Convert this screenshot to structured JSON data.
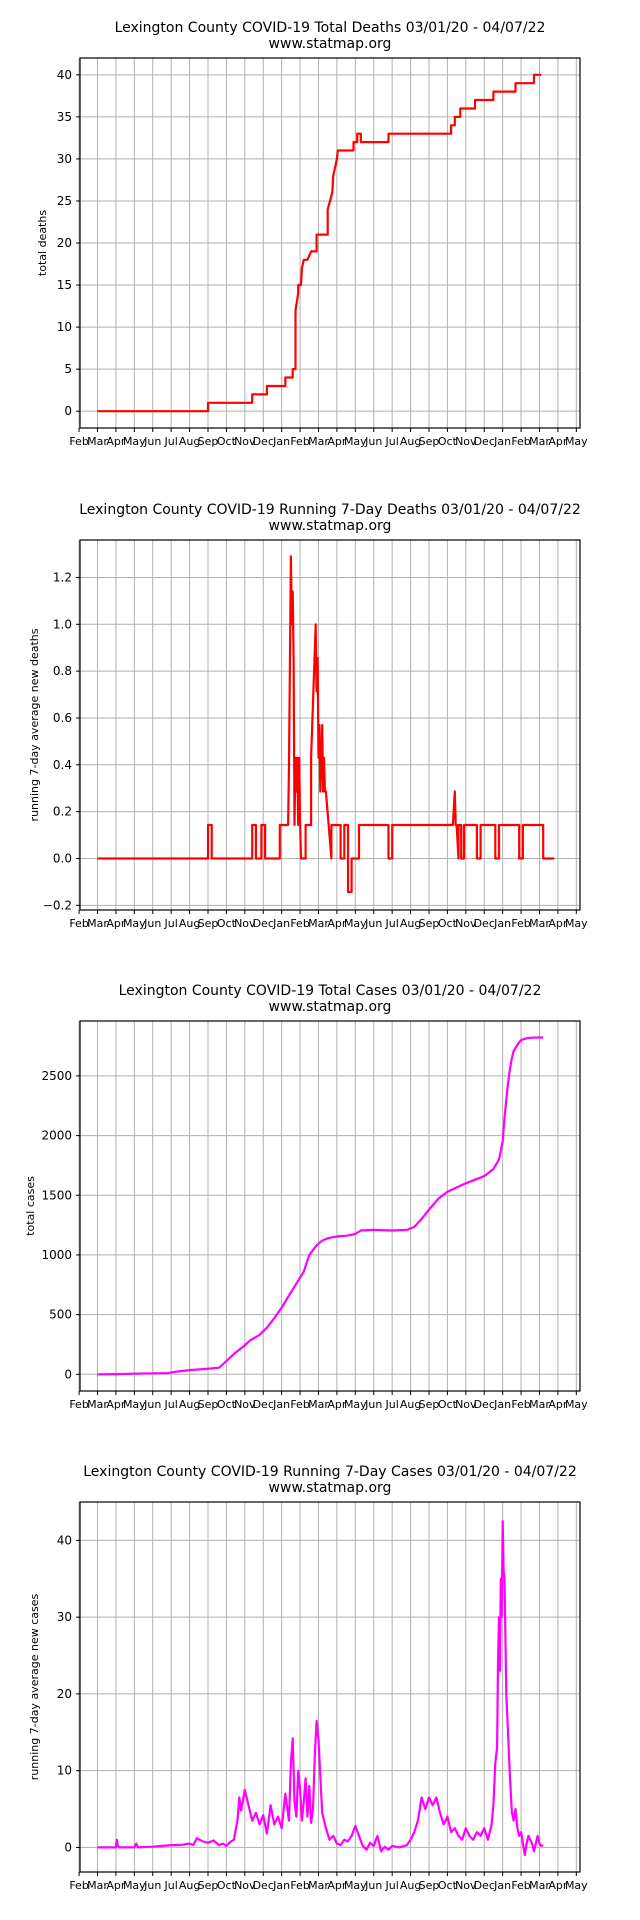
{
  "chart_data": [
    {
      "type": "line",
      "title": "Lexington County COVID-19 Total Deaths 03/01/20 - 04/07/22",
      "subtitle": "www.statmap.org",
      "xlabel": "",
      "ylabel": "total deaths",
      "ylim": [
        -2,
        42
      ],
      "yticks": [
        0,
        5,
        10,
        15,
        20,
        25,
        30,
        35,
        40
      ],
      "xtick_labels": [
        "Feb",
        "Mar",
        "Apr",
        "May",
        "Jun",
        "Jul",
        "Aug",
        "Sep",
        "Oct",
        "Nov",
        "Dec",
        "Jan",
        "Feb",
        "Mar",
        "Apr",
        "May",
        "Jun",
        "Jul",
        "Aug",
        "Sep",
        "Oct",
        "Nov",
        "Dec",
        "Jan",
        "Feb",
        "Mar",
        "Apr",
        "May"
      ],
      "grid": true,
      "color": "#ff0000",
      "series": [
        {
          "x": [
            0,
            6,
            6,
            8.4,
            8.4,
            9.2,
            9.2,
            10.2,
            10.2,
            10.6,
            10.6,
            10.75,
            10.75,
            10.9,
            10.9,
            11.05,
            11.1,
            11.2,
            11.3,
            11.4,
            11.6,
            11.9,
            11.9,
            12.5,
            12.5,
            12.75,
            12.8,
            12.9,
            13.0,
            13.05,
            13.1,
            13.2,
            13.2,
            13.4,
            13.9,
            13.9,
            14.1,
            14.1,
            14.2,
            14.3,
            14.3,
            15.8,
            15.8,
            19.2,
            19.2,
            19.4,
            19.4,
            19.7,
            19.7,
            20.5,
            20.5,
            21.5,
            21.5,
            22.7,
            22.7,
            23.7,
            23.7,
            24.1
          ],
          "y": [
            0,
            0,
            1,
            1,
            2,
            2,
            3,
            3,
            4,
            4,
            5,
            5,
            12,
            14,
            15,
            15,
            17,
            18,
            18,
            18,
            19,
            19,
            21,
            21,
            24,
            26,
            28,
            29,
            30,
            31,
            31,
            31,
            31,
            31,
            31,
            32,
            32,
            33,
            33,
            33,
            32,
            32,
            33,
            33,
            34,
            34,
            35,
            35,
            36,
            36,
            37,
            37,
            38,
            38,
            39,
            39,
            40,
            40
          ]
        }
      ]
    },
    {
      "type": "line",
      "title": "Lexington County COVID-19 Running 7-Day Deaths 03/01/20 - 04/07/22",
      "subtitle": "www.statmap.org",
      "xlabel": "",
      "ylabel": "running 7-day average new deaths",
      "ylim": [
        -0.22,
        1.36
      ],
      "yticks": [
        -0.2,
        0.0,
        0.2,
        0.4,
        0.6,
        0.8,
        1.0,
        1.2
      ],
      "xtick_labels": [
        "Feb",
        "Mar",
        "Apr",
        "May",
        "Jun",
        "Jul",
        "Aug",
        "Sep",
        "Oct",
        "Nov",
        "Dec",
        "Jan",
        "Feb",
        "Mar",
        "Apr",
        "May",
        "Jun",
        "Jul",
        "Aug",
        "Sep",
        "Oct",
        "Nov",
        "Dec",
        "Jan",
        "Feb",
        "Mar",
        "Apr",
        "May"
      ],
      "grid": true,
      "color": "#ff0000",
      "series": [
        {
          "x": [
            0,
            6,
            6,
            6.2,
            6.2,
            8.4,
            8.4,
            8.6,
            8.6,
            8.9,
            8.9,
            9.1,
            9.1,
            9.9,
            9.9,
            10.35,
            10.4,
            10.5,
            10.55,
            10.6,
            10.65,
            10.7,
            10.75,
            10.8,
            10.85,
            10.9,
            10.95,
            11.0,
            11.05,
            11.3,
            11.3,
            11.6,
            11.6,
            11.85,
            11.9,
            11.95,
            12.0,
            12.05,
            12.1,
            12.15,
            12.2,
            12.25,
            12.3,
            12.35,
            12.4,
            12.7,
            12.7,
            13.2,
            13.2,
            13.4,
            13.4,
            13.6,
            13.6,
            13.8,
            13.8,
            14.2,
            14.2,
            15.8,
            15.8,
            16.0,
            16.0,
            19.3,
            19.4,
            19.45,
            19.5,
            19.6,
            19.6,
            19.75,
            19.75,
            19.9,
            19.9,
            20.6,
            20.6,
            20.8,
            20.8,
            21.6,
            21.6,
            21.8,
            21.8,
            22.9,
            22.9,
            23.1,
            23.1,
            24.2,
            24.2,
            24.4,
            24.4,
            24.8
          ],
          "y": [
            0,
            0,
            0.143,
            0.143,
            0,
            0,
            0.143,
            0.143,
            0,
            0,
            0.143,
            0.143,
            0,
            0,
            0.143,
            0.143,
            0.4,
            1.29,
            1.0,
            1.14,
            0.857,
            0.143,
            0.43,
            0.286,
            0.43,
            0.143,
            0.43,
            0.143,
            0,
            0,
            0.143,
            0.143,
            0.43,
            1.0,
            0.714,
            0.857,
            0.43,
            0.57,
            0.286,
            0.43,
            0.57,
            0.286,
            0.43,
            0.286,
            0.286,
            0,
            0.143,
            0.143,
            0,
            0,
            0.143,
            0.143,
            -0.143,
            -0.143,
            0,
            0,
            0.143,
            0.143,
            0,
            0,
            0.143,
            0.143,
            0.286,
            0.143,
            0.143,
            0,
            0.143,
            0.143,
            0,
            0,
            0.143,
            0.143,
            0,
            0,
            0.143,
            0.143,
            0,
            0,
            0.143,
            0.143,
            0,
            0,
            0.143,
            0.143,
            0,
            0,
            0,
            0
          ]
        }
      ]
    },
    {
      "type": "line",
      "title": "Lexington County COVID-19 Total Cases 03/01/20 - 04/07/22",
      "subtitle": "www.statmap.org",
      "xlabel": "",
      "ylabel": "total cases",
      "ylim": [
        -140,
        2960
      ],
      "yticks": [
        0,
        500,
        1000,
        1500,
        2000,
        2500
      ],
      "xtick_labels": [
        "Feb",
        "Mar",
        "Apr",
        "May",
        "Jun",
        "Jul",
        "Aug",
        "Sep",
        "Oct",
        "Nov",
        "Dec",
        "Jan",
        "Feb",
        "Mar",
        "Apr",
        "May",
        "Jun",
        "Jul",
        "Aug",
        "Sep",
        "Oct",
        "Nov",
        "Dec",
        "Jan",
        "Feb",
        "Mar",
        "Apr",
        "May"
      ],
      "grid": true,
      "color": "#ff00ff",
      "series": [
        {
          "x": [
            0,
            1,
            2,
            3,
            3.8,
            4.2,
            5,
            5.9,
            6.6,
            7.0,
            7.4,
            7.9,
            8.3,
            8.8,
            9.2,
            9.6,
            10.0,
            10.4,
            10.8,
            11.2,
            11.5,
            11.9,
            12.2,
            12.5,
            13.0,
            13.5,
            14.0,
            14.3,
            15.0,
            16.0,
            16.8,
            17.2,
            17.6,
            18.0,
            18.5,
            19.0,
            19.5,
            20.0,
            20.5,
            21.0,
            21.5,
            21.8,
            22.0,
            22.1,
            22.2,
            22.3,
            22.4,
            22.5,
            22.6,
            22.8,
            23.0,
            23.3,
            23.6,
            24.0,
            24.2
          ],
          "y": [
            0,
            2,
            5,
            8,
            10,
            20,
            35,
            45,
            55,
            110,
            170,
            230,
            285,
            330,
            390,
            470,
            560,
            660,
            760,
            860,
            1000,
            1080,
            1120,
            1140,
            1155,
            1160,
            1175,
            1205,
            1210,
            1205,
            1210,
            1235,
            1300,
            1380,
            1470,
            1530,
            1565,
            1600,
            1630,
            1660,
            1720,
            1800,
            1950,
            2150,
            2300,
            2450,
            2560,
            2650,
            2710,
            2760,
            2800,
            2815,
            2820,
            2822,
            2822
          ]
        }
      ]
    },
    {
      "type": "line",
      "title": "Lexington County COVID-19 Running 7-Day Cases 03/01/20 - 04/07/22",
      "subtitle": "www.statmap.org",
      "xlabel": "",
      "ylabel": "running 7-day average new cases",
      "ylim": [
        -3.2,
        45
      ],
      "yticks": [
        0,
        10,
        20,
        30,
        40
      ],
      "xtick_labels": [
        "Feb",
        "Mar",
        "Apr",
        "May",
        "Jun",
        "Jul",
        "Aug",
        "Sep",
        "Oct",
        "Nov",
        "Dec",
        "Jan",
        "Feb",
        "Mar",
        "Apr",
        "May",
        "Jun",
        "Jul",
        "Aug",
        "Sep",
        "Oct",
        "Nov",
        "Dec",
        "Jan",
        "Feb",
        "Mar",
        "Apr",
        "May"
      ],
      "grid": true,
      "color": "#ff00ff",
      "series": [
        {
          "x": [
            0,
            1.0,
            1.05,
            1.1,
            1.2,
            2.0,
            2.1,
            2.2,
            3.0,
            3.5,
            4.0,
            4.5,
            5.0,
            5.2,
            5.4,
            5.7,
            6.0,
            6.3,
            6.6,
            6.8,
            7.0,
            7.2,
            7.4,
            7.6,
            7.7,
            7.8,
            8.0,
            8.2,
            8.4,
            8.6,
            8.8,
            9.0,
            9.2,
            9.4,
            9.6,
            9.8,
            10.0,
            10.2,
            10.4,
            10.5,
            10.6,
            10.7,
            10.8,
            10.9,
            11.0,
            11.1,
            11.2,
            11.3,
            11.4,
            11.5,
            11.6,
            11.7,
            11.8,
            11.9,
            12.0,
            12.2,
            12.4,
            12.6,
            12.8,
            13.0,
            13.2,
            13.4,
            13.6,
            13.8,
            14.0,
            14.2,
            14.4,
            14.6,
            14.8,
            15.0,
            15.2,
            15.4,
            15.6,
            15.8,
            16.0,
            16.4,
            16.8,
            17.0,
            17.2,
            17.4,
            17.6,
            17.8,
            18.0,
            18.2,
            18.4,
            18.6,
            18.8,
            19.0,
            19.2,
            19.4,
            19.6,
            19.8,
            20.0,
            20.2,
            20.4,
            20.6,
            20.8,
            21.0,
            21.2,
            21.4,
            21.5,
            21.6,
            21.7,
            21.75,
            21.8,
            21.85,
            21.9,
            21.95,
            22.0,
            22.05,
            22.1,
            22.2,
            22.3,
            22.4,
            22.5,
            22.6,
            22.7,
            22.8,
            22.9,
            23.0,
            23.1,
            23.2,
            23.3,
            23.4,
            23.5,
            23.6,
            23.7,
            23.8,
            23.9,
            24.0,
            24.1,
            24.2
          ],
          "y": [
            0,
            0,
            1,
            0.2,
            0,
            0,
            0.5,
            0,
            0.1,
            0.2,
            0.3,
            0.3,
            0.5,
            0.3,
            1.2,
            0.8,
            0.6,
            0.9,
            0.3,
            0.5,
            0.2,
            0.7,
            1.0,
            3.5,
            6.5,
            4.8,
            7.5,
            5.5,
            3.5,
            4.5,
            3.0,
            4.2,
            1.8,
            5.5,
            3.0,
            4.0,
            2.5,
            7.0,
            3.5,
            11.0,
            14.2,
            6.0,
            4.0,
            10.0,
            7.5,
            3.5,
            6.0,
            9.0,
            4.0,
            8.0,
            3.2,
            5.0,
            12.0,
            16.5,
            14.0,
            4.5,
            2.5,
            1.0,
            1.5,
            0.5,
            0.3,
            1.0,
            0.8,
            1.5,
            2.8,
            1.5,
            0.2,
            -0.3,
            0.6,
            0.2,
            1.5,
            -0.5,
            0.1,
            -0.3,
            0.2,
            0,
            0.3,
            1.0,
            2.0,
            3.5,
            6.5,
            5.0,
            6.5,
            5.5,
            6.5,
            4.5,
            3.0,
            4.0,
            2.0,
            2.5,
            1.5,
            1.0,
            2.5,
            1.5,
            1.0,
            2.0,
            1.5,
            2.5,
            1.0,
            3.0,
            5.5,
            11.0,
            13.0,
            24.0,
            30.0,
            23.0,
            35.0,
            30.0,
            42.5,
            36.0,
            35.0,
            20.0,
            14.5,
            9.0,
            4.5,
            3.5,
            5.0,
            2.5,
            1.5,
            2.0,
            0.5,
            -1.0,
            0.5,
            1.5,
            1.0,
            0.5,
            -0.5,
            0.5,
            1.5,
            0.5,
            0.2,
            0.3
          ]
        }
      ]
    }
  ]
}
